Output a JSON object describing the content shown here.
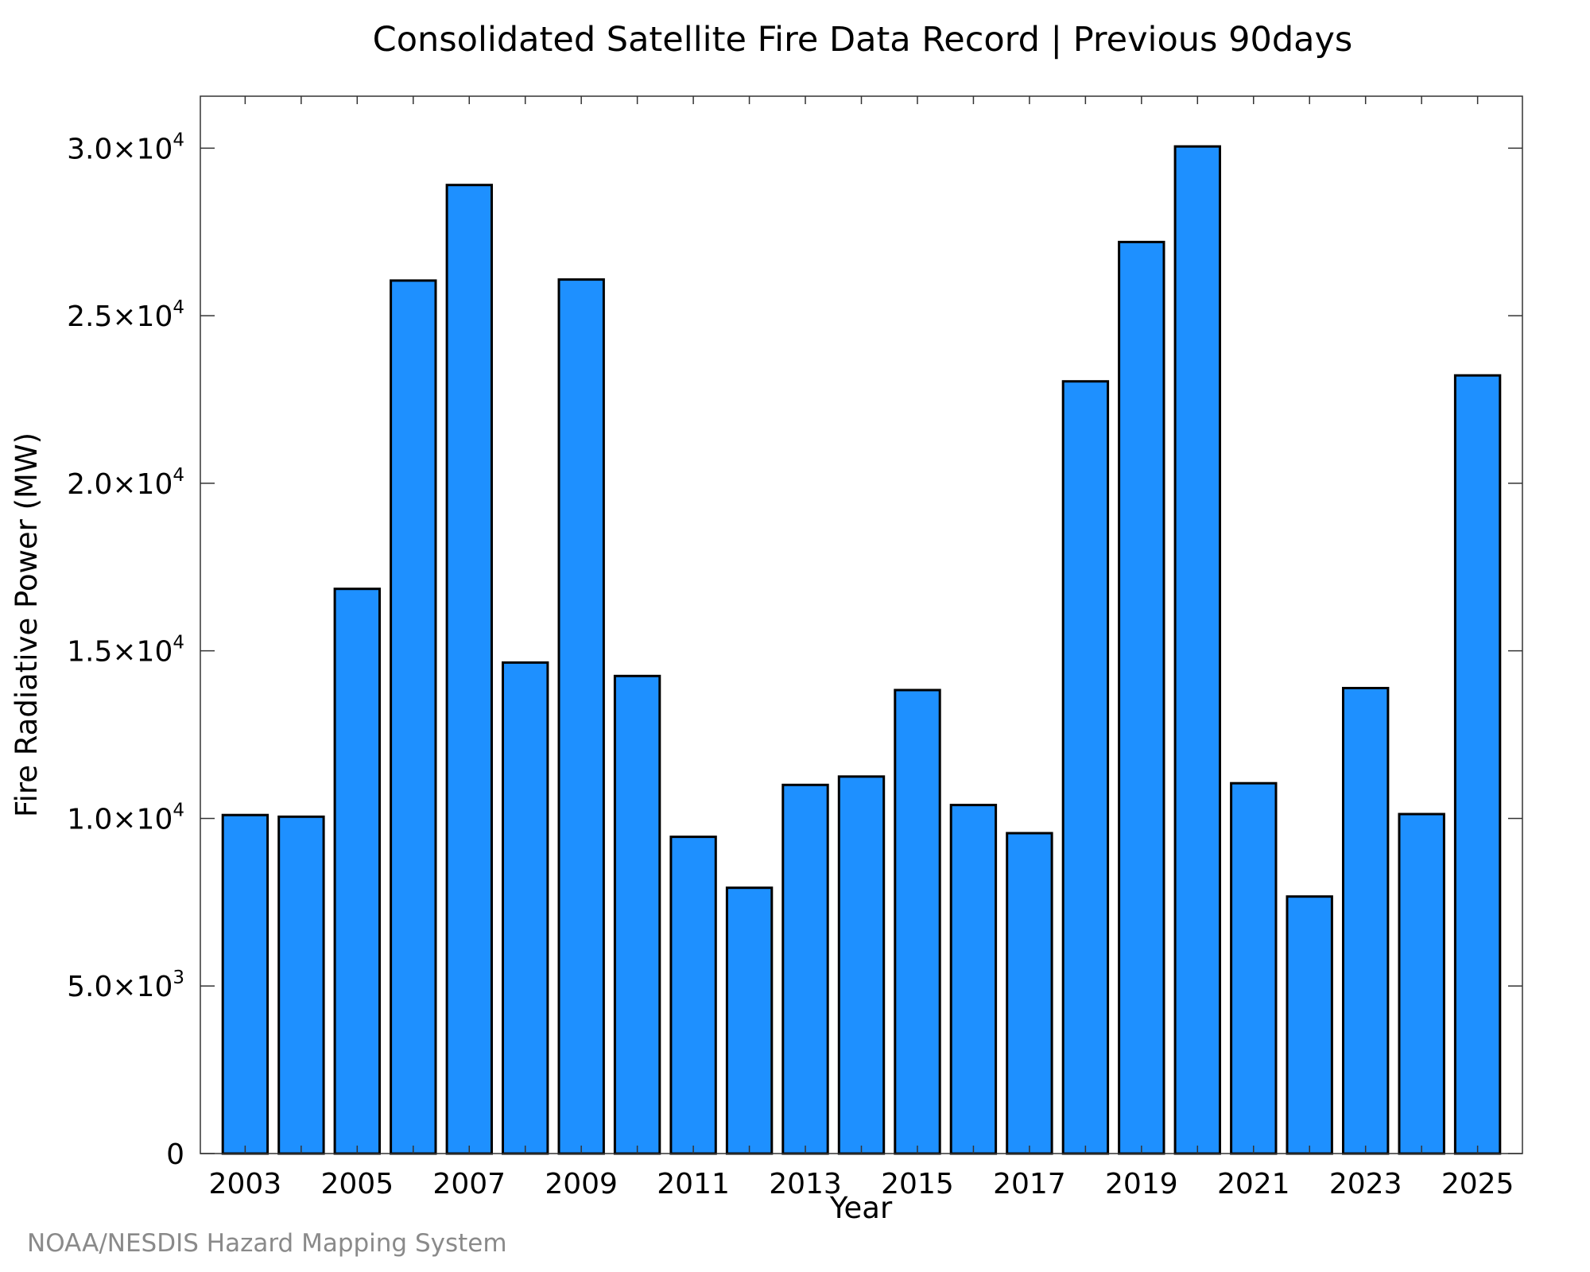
{
  "chart_data": {
    "type": "bar",
    "title": "Consolidated Satellite Fire Data Record | Previous 90days",
    "xlabel": "Year",
    "ylabel": "Fire Radiative Power (MW)",
    "categories": [
      "2003",
      "2004",
      "2005",
      "2006",
      "2007",
      "2008",
      "2009",
      "2010",
      "2011",
      "2012",
      "2013",
      "2014",
      "2015",
      "2016",
      "2017",
      "2018",
      "2019",
      "2020",
      "2021",
      "2022",
      "2023",
      "2024",
      "2025"
    ],
    "values": [
      10100,
      10050,
      16850,
      26050,
      28900,
      14650,
      26080,
      14250,
      9450,
      7930,
      11000,
      11250,
      13830,
      10400,
      9560,
      23040,
      27200,
      30050,
      11050,
      7670,
      13890,
      10130,
      23220
    ],
    "x_tick_labels": [
      "2003",
      "2005",
      "2007",
      "2009",
      "2011",
      "2013",
      "2015",
      "2017",
      "2019",
      "2021",
      "2023",
      "2025"
    ],
    "y_ticks": [
      {
        "value": 0,
        "mantissa": "0",
        "exp": ""
      },
      {
        "value": 5000,
        "mantissa": "5.0×10",
        "exp": "3"
      },
      {
        "value": 10000,
        "mantissa": "1.0×10",
        "exp": "4"
      },
      {
        "value": 15000,
        "mantissa": "1.5×10",
        "exp": "4"
      },
      {
        "value": 20000,
        "mantissa": "2.0×10",
        "exp": "4"
      },
      {
        "value": 25000,
        "mantissa": "2.5×10",
        "exp": "4"
      },
      {
        "value": 30000,
        "mantissa": "3.0×10",
        "exp": "4"
      }
    ],
    "ylim": [
      0,
      31550
    ],
    "grid": false,
    "legend": "none",
    "bar_color": "#1e90ff",
    "bar_edge_color": "#000000"
  },
  "credit": "NOAA/NESDIS Hazard Mapping System"
}
